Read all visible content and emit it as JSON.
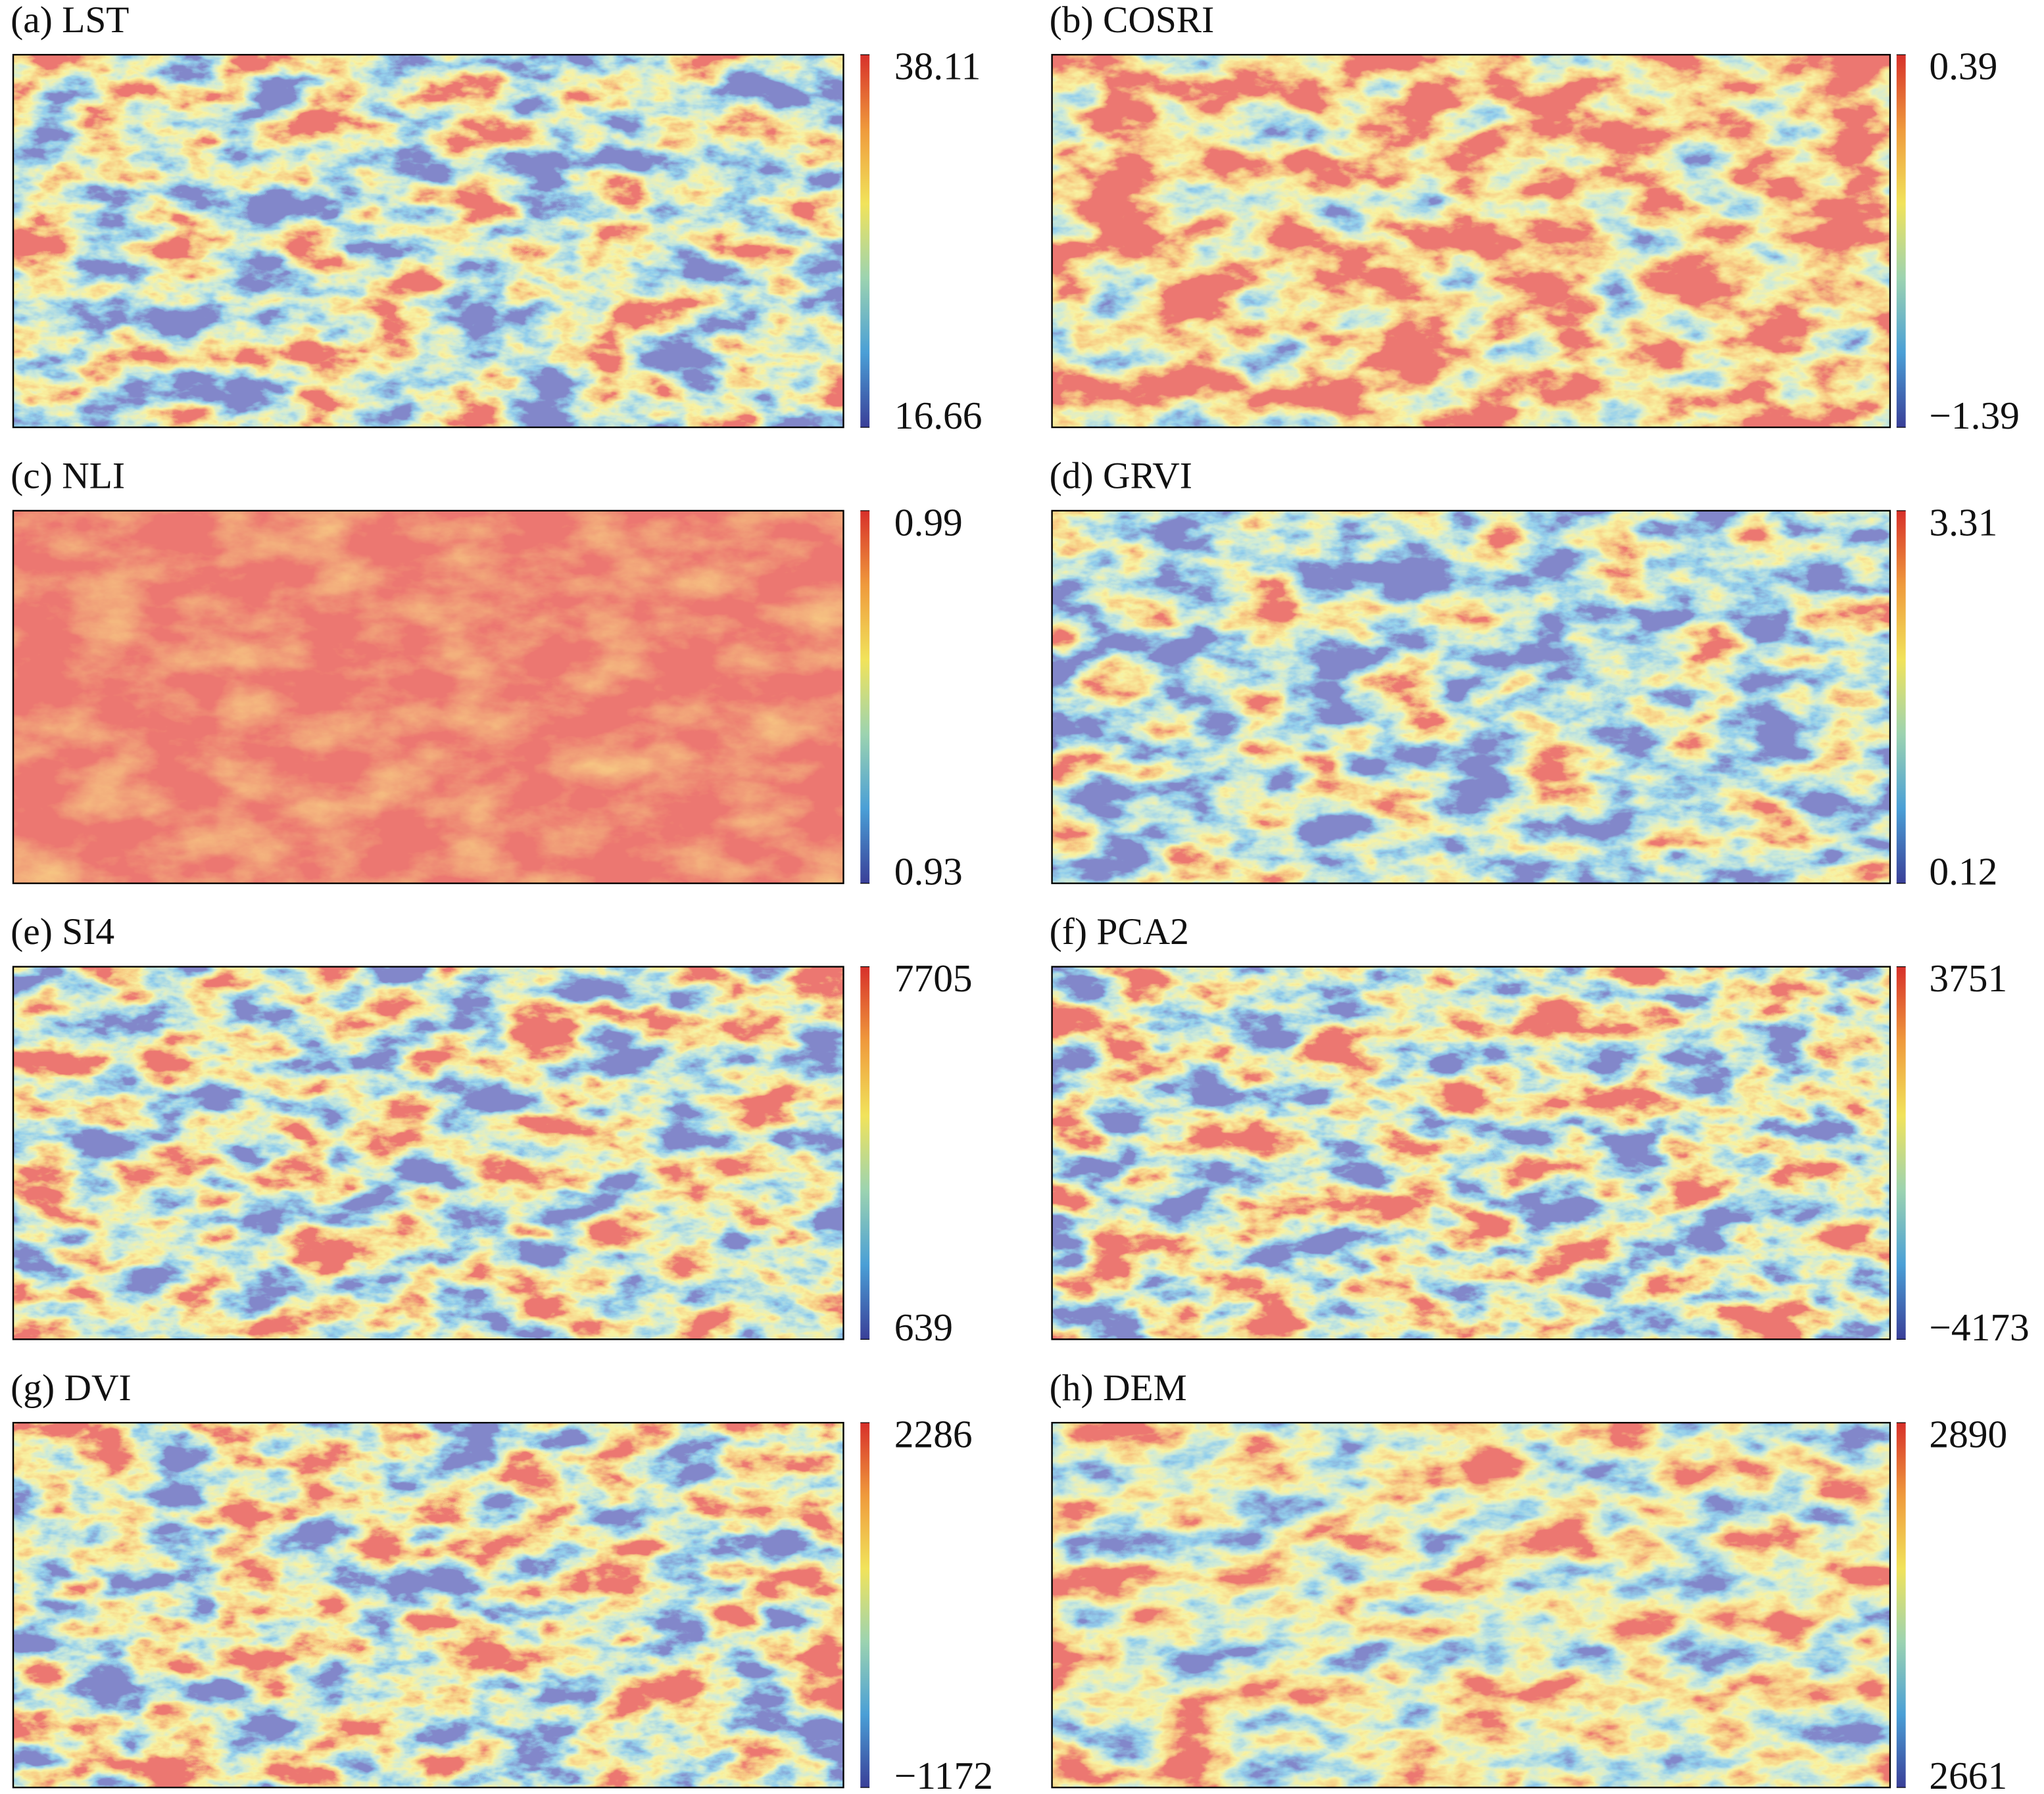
{
  "colorbar_colors": [
    "#3a3f98",
    "#4a9fd6",
    "#9cd3b0",
    "#f1e35b",
    "#ef9a3c",
    "#d7302a"
  ],
  "chart_data": [
    {
      "type": "raster",
      "title": "(a) LST",
      "clim": [
        16.66,
        38.11
      ],
      "cticks": [
        16.66,
        38.11
      ]
    },
    {
      "type": "raster",
      "title": "(b) COSRI",
      "clim": [
        -1.39,
        0.39
      ],
      "cticks": [
        {
          "value": -1.39,
          "label": "−1.39"
        },
        0.39
      ]
    },
    {
      "type": "raster",
      "title": "(c) NLI",
      "clim": [
        0.93,
        0.99
      ],
      "cticks": [
        0.93,
        0.99
      ]
    },
    {
      "type": "raster",
      "title": "(d) GRVI",
      "clim": [
        0.12,
        3.31
      ],
      "cticks": [
        0.12,
        3.31
      ]
    },
    {
      "type": "raster",
      "title": "(e) SI4",
      "clim": [
        639,
        7705
      ],
      "cticks": [
        639,
        7705
      ]
    },
    {
      "type": "raster",
      "title": "(f) PCA2",
      "clim": [
        -4173,
        3751
      ],
      "cticks": [
        {
          "value": -4173,
          "label": "−4173"
        },
        3751
      ]
    },
    {
      "type": "raster",
      "title": "(g) DVI",
      "clim": [
        -1172,
        2286
      ],
      "cticks": [
        {
          "value": -1172,
          "label": "−1172"
        },
        2286
      ]
    },
    {
      "type": "raster",
      "title": "(h) DEM",
      "clim": [
        2661,
        2890
      ],
      "cticks": [
        2661,
        2890
      ]
    }
  ]
}
